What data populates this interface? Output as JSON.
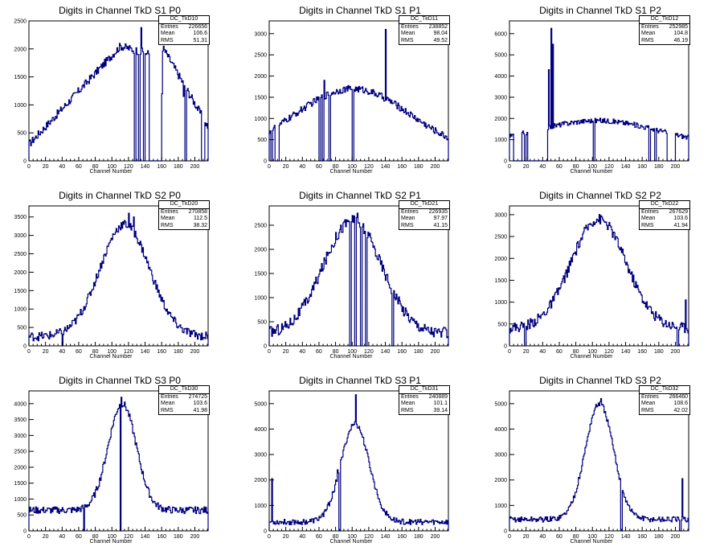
{
  "chart_data": [
    {
      "type": "histogram",
      "title": "Digits in Channel TkD S1 P0",
      "xlabel": "Channel Number",
      "xlim": [
        0,
        216
      ],
      "ylim": [
        0,
        2500
      ],
      "xticks": [
        0,
        20,
        40,
        60,
        80,
        100,
        120,
        140,
        160,
        180,
        200
      ],
      "yticks": [
        0,
        500,
        1000,
        1500,
        2000,
        2500
      ],
      "stats": {
        "name": "DC_TkD10",
        "entries": "226656",
        "mean": "106.6",
        "rms": "51.31"
      },
      "shape": {
        "kind": "ramp",
        "base": 300,
        "top": 2050,
        "rise_end": 110,
        "plateau_end": 160,
        "tail": 600,
        "noise": 70
      },
      "gaps": [
        [
          127,
          129
        ],
        [
          132,
          134
        ],
        [
          138,
          140
        ],
        [
          145,
          160
        ],
        [
          188,
          190
        ],
        [
          208,
          212
        ]
      ],
      "spikes": [
        [
          135,
          2380
        ],
        [
          160,
          1200
        ],
        [
          186,
          1150
        ]
      ],
      "color": "#00007f"
    },
    {
      "type": "histogram",
      "title": "Digits in Channel TkD S1 P1",
      "xlabel": "Channel Number",
      "xlim": [
        0,
        216
      ],
      "ylim": [
        0,
        3300
      ],
      "xticks": [
        0,
        20,
        40,
        60,
        80,
        100,
        120,
        140,
        160,
        180,
        200
      ],
      "yticks": [
        0,
        500,
        1000,
        1500,
        2000,
        2500,
        3000
      ],
      "stats": {
        "name": "DC_TkD11",
        "entries": "238852",
        "mean": "98.04",
        "rms": "49.52"
      },
      "shape": {
        "kind": "broad",
        "center": 100,
        "width": 70,
        "peak": 1700,
        "base": 150,
        "noise": 80
      },
      "gaps": [
        [
          2,
          4
        ],
        [
          7,
          12
        ],
        [
          60,
          62
        ],
        [
          64,
          66
        ],
        [
          72,
          74
        ],
        [
          100,
          102
        ]
      ],
      "spikes": [
        [
          140,
          3100
        ],
        [
          66,
          1900
        ]
      ],
      "color": "#00007f"
    },
    {
      "type": "histogram",
      "title": "Digits in Channel TkD S1 P2",
      "xlabel": "Channel Number",
      "xlim": [
        0,
        216
      ],
      "ylim": [
        0,
        6600
      ],
      "xticks": [
        0,
        20,
        40,
        60,
        80,
        100,
        120,
        140,
        160,
        180,
        200
      ],
      "yticks": [
        0,
        1000,
        2000,
        3000,
        4000,
        5000,
        6000
      ],
      "stats": {
        "name": "DC_TkD12",
        "entries": "252985",
        "mean": "104.8",
        "rms": "46.19"
      },
      "shape": {
        "kind": "broad",
        "center": 105,
        "width": 75,
        "peak": 1900,
        "base": 700,
        "noise": 120
      },
      "gaps": [
        [
          5,
          15
        ],
        [
          18,
          20
        ],
        [
          22,
          46
        ],
        [
          101,
          103
        ],
        [
          168,
          170
        ],
        [
          175,
          177
        ],
        [
          190,
          200
        ]
      ],
      "spikes": [
        [
          47,
          4300
        ],
        [
          50,
          6250
        ],
        [
          52,
          5500
        ]
      ],
      "color": "#00007f"
    },
    {
      "type": "histogram",
      "title": "Digits in Channel TkD S2 P0",
      "xlabel": "Channel Number",
      "xlim": [
        0,
        216
      ],
      "ylim": [
        0,
        3800
      ],
      "xticks": [
        0,
        20,
        40,
        60,
        80,
        100,
        120,
        140,
        160,
        180,
        200
      ],
      "yticks": [
        0,
        500,
        1000,
        1500,
        2000,
        2500,
        3000,
        3500
      ],
      "stats": {
        "name": "DC_TkD20",
        "entries": "270858",
        "mean": "112.5",
        "rms": "38.32"
      },
      "shape": {
        "kind": "gauss",
        "center": 115,
        "width": 30,
        "peak": 3300,
        "base": 250,
        "noise": 120
      },
      "gaps": [
        [
          40,
          41
        ]
      ],
      "spikes": [
        [
          120,
          3600
        ],
        [
          126,
          3500
        ]
      ],
      "color": "#00007f"
    },
    {
      "type": "histogram",
      "title": "Digits in Channel TkD S2 P1",
      "xlabel": "Channel Number",
      "xlim": [
        0,
        216
      ],
      "ylim": [
        0,
        2900
      ],
      "xticks": [
        0,
        20,
        40,
        60,
        80,
        100,
        120,
        140,
        160,
        180,
        200
      ],
      "yticks": [
        0,
        500,
        1000,
        1500,
        2000,
        2500
      ],
      "stats": {
        "name": "DC_TkD21",
        "entries": "226935",
        "mean": "97.97",
        "rms": "41.15"
      },
      "shape": {
        "kind": "gauss",
        "center": 100,
        "width": 35,
        "peak": 2600,
        "base": 250,
        "noise": 120
      },
      "gaps": [
        [
          97,
          99
        ],
        [
          103,
          105
        ],
        [
          110,
          112
        ],
        [
          116,
          118
        ],
        [
          148,
          150
        ]
      ],
      "spikes": [
        [
          106,
          2750
        ],
        [
          100,
          2700
        ]
      ],
      "color": "#00007f"
    },
    {
      "type": "histogram",
      "title": "Digits in Channel TkD S2 P2",
      "xlabel": "Channel Number",
      "xlim": [
        0,
        216
      ],
      "ylim": [
        0,
        3200
      ],
      "xticks": [
        0,
        20,
        40,
        60,
        80,
        100,
        120,
        140,
        160,
        180,
        200
      ],
      "yticks": [
        0,
        500,
        1000,
        1500,
        2000,
        2500,
        3000
      ],
      "stats": {
        "name": "DC_TkD22",
        "entries": "267629",
        "mean": "103.6",
        "rms": "41.94"
      },
      "shape": {
        "kind": "gauss",
        "center": 107,
        "width": 33,
        "peak": 2900,
        "base": 400,
        "noise": 120
      },
      "gaps": [
        [
          18,
          20
        ],
        [
          202,
          204
        ]
      ],
      "spikes": [
        [
          212,
          1050
        ]
      ],
      "color": "#00007f"
    },
    {
      "type": "histogram",
      "title": "Digits in Channel TkD S3 P0",
      "xlabel": "Channel Number",
      "xlim": [
        0,
        216
      ],
      "ylim": [
        0,
        4400
      ],
      "xticks": [
        0,
        20,
        40,
        60,
        80,
        100,
        120,
        140,
        160,
        180,
        200
      ],
      "yticks": [
        0,
        500,
        1000,
        1500,
        2000,
        2500,
        3000,
        3500,
        4000
      ],
      "stats": {
        "name": "DC_TkD30",
        "entries": "274725",
        "mean": "103.6",
        "rms": "41.98"
      },
      "shape": {
        "kind": "gauss",
        "center": 112,
        "width": 17,
        "peak": 4000,
        "base": 650,
        "noise": 110
      },
      "gaps": [
        [
          66,
          67
        ],
        [
          110,
          111
        ]
      ],
      "spikes": [
        [
          111,
          4200
        ]
      ],
      "color": "#00007f"
    },
    {
      "type": "histogram",
      "title": "Digits in Channel TkD S3 P1",
      "xlabel": "Channel Number",
      "xlim": [
        0,
        216
      ],
      "ylim": [
        0,
        5500
      ],
      "xticks": [
        0,
        20,
        40,
        60,
        80,
        100,
        120,
        140,
        160,
        180,
        200
      ],
      "yticks": [
        0,
        1000,
        2000,
        3000,
        4000,
        5000
      ],
      "stats": {
        "name": "DC_TkD31",
        "entries": "240889",
        "mean": "101.1",
        "rms": "39.14"
      },
      "shape": {
        "kind": "gauss",
        "center": 103,
        "width": 17,
        "peak": 4200,
        "base": 350,
        "noise": 110
      },
      "gaps": [
        [
          84,
          86
        ]
      ],
      "spikes": [
        [
          3,
          2050
        ],
        [
          104,
          5350
        ],
        [
          82,
          2400
        ]
      ],
      "color": "#00007f"
    },
    {
      "type": "histogram",
      "title": "Digits in Channel TkD S3 P2",
      "xlabel": "Channel Number",
      "xlim": [
        0,
        216
      ],
      "ylim": [
        0,
        5500
      ],
      "xticks": [
        0,
        20,
        40,
        60,
        80,
        100,
        120,
        140,
        160,
        180,
        200
      ],
      "yticks": [
        0,
        1000,
        2000,
        3000,
        4000,
        5000
      ],
      "stats": {
        "name": "DC_TkD32",
        "entries": "266460",
        "mean": "108.6",
        "rms": "42.02"
      },
      "shape": {
        "kind": "gauss",
        "center": 108,
        "width": 17,
        "peak": 5000,
        "base": 450,
        "noise": 110
      },
      "gaps": [
        [
          134,
          136
        ],
        [
          205,
          207
        ]
      ],
      "spikes": [
        [
          110,
          5200
        ],
        [
          208,
          2050
        ]
      ],
      "color": "#00007f"
    }
  ]
}
